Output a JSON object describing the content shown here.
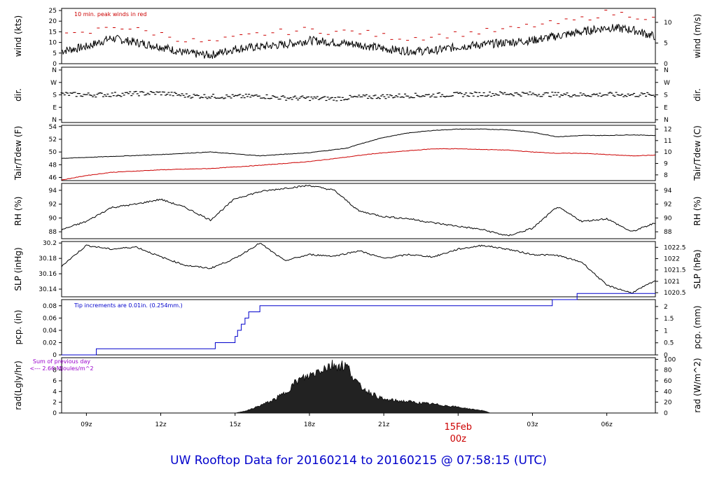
{
  "footer": {
    "title": "UW Rooftop Data for 20160214  to  20160215 @ 07:58:15  (UTC)"
  },
  "colors": {
    "black": "#000000",
    "red": "#cc0000",
    "blue": "#0000cc",
    "purple": "#9900cc"
  },
  "time_axis": {
    "ticks": [
      {
        "t": 9,
        "label": "09z"
      },
      {
        "t": 12,
        "label": "12z"
      },
      {
        "t": 15,
        "label": "15z"
      },
      {
        "t": 18,
        "label": "18z"
      },
      {
        "t": 21,
        "label": "21z"
      },
      {
        "t": 24,
        "label": "00z"
      },
      {
        "t": 27,
        "label": "03z"
      },
      {
        "t": 30,
        "label": "06z"
      }
    ],
    "date_label": "15Feb",
    "date_time_label": "00z",
    "range": [
      8.0,
      31.96
    ]
  },
  "chart_data": [
    {
      "name": "wind",
      "type": "line",
      "ylabel_left": "wind (kts)",
      "ylabel_right": "wind (m/s)",
      "yticks_left": [
        0,
        5,
        10,
        15,
        20,
        25
      ],
      "yticks_right": [
        0,
        5,
        10
      ],
      "ylim": [
        0,
        26
      ],
      "annotation": "10 min. peak winds in red",
      "series": [
        {
          "name": "wind",
          "t": [
            8.0,
            9.0,
            10.0,
            11.0,
            12.0,
            13.0,
            14.0,
            15.0,
            16.0,
            17.0,
            18.0,
            19.0,
            20.0,
            21.0,
            22.0,
            23.0,
            24.0,
            25.0,
            26.0,
            27.0,
            28.0,
            29.0,
            30.0,
            31.0,
            31.9
          ],
          "values": [
            6,
            8,
            12,
            10,
            8,
            5,
            4,
            7,
            8,
            9,
            11,
            10,
            9,
            7,
            6,
            6,
            8,
            9,
            10,
            11,
            13,
            15,
            17,
            16,
            13
          ]
        },
        {
          "name": "10 min. peak winds",
          "t": [
            8.0,
            9.0,
            10.0,
            11.0,
            12.0,
            13.0,
            14.0,
            15.0,
            16.0,
            17.0,
            18.0,
            19.0,
            20.0,
            21.0,
            22.0,
            23.0,
            24.0,
            25.0,
            26.0,
            27.0,
            28.0,
            29.0,
            30.0,
            31.0,
            31.9
          ],
          "values": [
            13,
            14,
            18,
            16,
            14,
            11,
            10,
            12,
            14,
            15,
            16,
            15,
            15,
            13,
            12,
            13,
            14,
            15,
            16,
            18,
            19,
            21,
            24,
            23,
            21
          ]
        }
      ]
    },
    {
      "name": "dir",
      "type": "scatter",
      "ylabel_left": "dir.",
      "ylabel_right": "dir.",
      "yticks_left": [
        "N",
        "W",
        "S",
        "E",
        "N"
      ],
      "yticks_right": [
        "N",
        "W",
        "S",
        "E",
        "N"
      ],
      "ylim": [
        0,
        360
      ],
      "series": [
        {
          "name": "direction",
          "t": [
            8.0,
            9.0,
            10.0,
            11.0,
            12.0,
            13.0,
            14.0,
            15.0,
            16.0,
            17.0,
            18.0,
            19.0,
            20.0,
            21.0,
            22.0,
            23.0,
            24.0,
            25.0,
            26.0,
            27.0,
            28.0,
            29.0,
            30.0,
            31.0,
            31.9
          ],
          "values": [
            185,
            180,
            182,
            188,
            192,
            175,
            170,
            168,
            172,
            160,
            158,
            155,
            165,
            170,
            175,
            178,
            182,
            185,
            188,
            185,
            182,
            180,
            182,
            180,
            180
          ]
        }
      ]
    },
    {
      "name": "temp",
      "type": "line",
      "ylabel_left": "Tair/Tdew (F)",
      "ylabel_right": "Tair/Tdew (C)",
      "yticks_left": [
        46,
        48,
        50,
        52,
        54
      ],
      "yticks_right": [
        8,
        9,
        10,
        11,
        12
      ],
      "ylim": [
        45.5,
        54.2
      ],
      "series": [
        {
          "name": "Tair",
          "t": [
            8.0,
            10.0,
            12.0,
            14.0,
            16.0,
            18.0,
            19.5,
            20.0,
            21.0,
            22.0,
            23.0,
            24.0,
            25.0,
            26.0,
            27.0,
            28.0,
            29.0,
            30.0,
            31.0,
            31.9
          ],
          "values": [
            49.0,
            49.3,
            49.6,
            50.0,
            49.4,
            49.9,
            50.6,
            51.2,
            52.3,
            53.0,
            53.4,
            53.6,
            53.6,
            53.5,
            53.1,
            52.4,
            52.6,
            52.6,
            52.7,
            52.6
          ]
        },
        {
          "name": "Tdew",
          "t": [
            8.0,
            9.0,
            10.0,
            12.0,
            14.0,
            16.0,
            18.0,
            19.5,
            20.5,
            22.0,
            23.0,
            24.0,
            25.0,
            26.0,
            27.0,
            28.0,
            29.0,
            30.0,
            31.0,
            31.9
          ],
          "values": [
            45.6,
            46.3,
            46.8,
            47.2,
            47.4,
            47.9,
            48.5,
            49.2,
            49.7,
            50.2,
            50.5,
            50.5,
            50.4,
            50.3,
            50.0,
            49.8,
            49.8,
            49.6,
            49.4,
            49.5
          ]
        }
      ]
    },
    {
      "name": "rh",
      "type": "line",
      "ylabel_left": "RH (%)",
      "ylabel_right": "RH (%)",
      "yticks_left": [
        88,
        90,
        92,
        94
      ],
      "yticks_right": [
        88,
        90,
        92,
        94
      ],
      "ylim": [
        87.0,
        95.0
      ],
      "series": [
        {
          "name": "RH",
          "t": [
            8.0,
            9.0,
            10.0,
            11.0,
            12.0,
            13.0,
            14.0,
            15.0,
            16.0,
            17.0,
            18.0,
            19.0,
            20.0,
            21.0,
            22.0,
            23.0,
            24.0,
            25.0,
            26.0,
            27.0,
            28.0,
            29.0,
            30.0,
            31.0,
            31.9
          ],
          "values": [
            88.3,
            89.5,
            91.5,
            92.0,
            92.7,
            91.5,
            89.7,
            92.8,
            93.8,
            94.3,
            94.7,
            94.0,
            91.0,
            90.2,
            89.9,
            89.3,
            88.8,
            88.3,
            87.4,
            88.5,
            91.6,
            89.5,
            89.9,
            88.0,
            89.2
          ]
        }
      ]
    },
    {
      "name": "slp",
      "type": "line",
      "ylabel_left": "SLP (inHg)",
      "ylabel_right": "SLP (hPa)",
      "yticks_left": [
        30.14,
        30.16,
        30.18,
        30.2
      ],
      "yticks_right": [
        1020.5,
        1021,
        1021.5,
        1022,
        1022.5
      ],
      "ylim": [
        30.13,
        30.202
      ],
      "series": [
        {
          "name": "SLP",
          "t": [
            8.0,
            9.0,
            10.0,
            11.0,
            12.0,
            13.0,
            14.0,
            15.0,
            16.0,
            17.0,
            18.0,
            19.0,
            20.0,
            21.0,
            22.0,
            23.0,
            24.0,
            25.0,
            26.0,
            27.0,
            28.0,
            29.0,
            30.0,
            31.0,
            31.9
          ],
          "values": [
            30.17,
            30.197,
            30.192,
            30.195,
            30.182,
            30.171,
            30.167,
            30.18,
            30.2,
            30.177,
            30.185,
            30.183,
            30.19,
            30.18,
            30.185,
            30.182,
            30.192,
            30.197,
            30.192,
            30.185,
            30.184,
            30.175,
            30.145,
            30.135,
            30.15
          ]
        }
      ]
    },
    {
      "name": "pcp",
      "type": "line",
      "ylabel_left": "pcp. (in)",
      "ylabel_right": "pcp. (mm)",
      "yticks_left": [
        0.0,
        0.02,
        0.04,
        0.06,
        0.08
      ],
      "yticks_right": [
        0,
        0.5,
        1,
        1.5,
        2
      ],
      "ylim": [
        0,
        0.09
      ],
      "annotation": "Tip increments are 0.01in. (0.254mm.)",
      "series": [
        {
          "name": "precip",
          "t": [
            8.0,
            9.4,
            14.2,
            15.0,
            15.1,
            15.25,
            15.4,
            15.55,
            16.0,
            27.8,
            28.8,
            31.96
          ],
          "values": [
            0.0,
            0.01,
            0.02,
            0.03,
            0.04,
            0.05,
            0.06,
            0.07,
            0.08,
            0.09,
            0.1,
            0.1
          ]
        }
      ]
    },
    {
      "name": "rad",
      "type": "area",
      "ylabel_left": "rad(Lgly/hr)",
      "ylabel_right": "rad (W/m^2)",
      "yticks_left": [
        0,
        2,
        4,
        6,
        8
      ],
      "yticks_right": [
        0,
        20,
        40,
        60,
        80,
        100
      ],
      "ylim": [
        0,
        10.3
      ],
      "annotation_line1": "Sum of previous day",
      "annotation_line2": "<--- 2.66 MJoules/m^2",
      "series": [
        {
          "name": "radiation",
          "t": [
            15.0,
            15.5,
            16.0,
            16.5,
            17.0,
            17.5,
            18.0,
            18.5,
            19.0,
            19.5,
            20.0,
            20.5,
            21.0,
            21.5,
            22.0,
            22.5,
            23.0,
            23.5,
            24.0,
            24.5,
            25.0,
            25.3
          ],
          "values": [
            0.0,
            0.5,
            1.5,
            2.5,
            4.0,
            6.5,
            7.5,
            9.0,
            9.8,
            9.5,
            5.5,
            4.0,
            2.7,
            2.5,
            2.3,
            2.0,
            1.8,
            1.5,
            1.2,
            0.8,
            0.5,
            0.0
          ]
        }
      ]
    }
  ]
}
